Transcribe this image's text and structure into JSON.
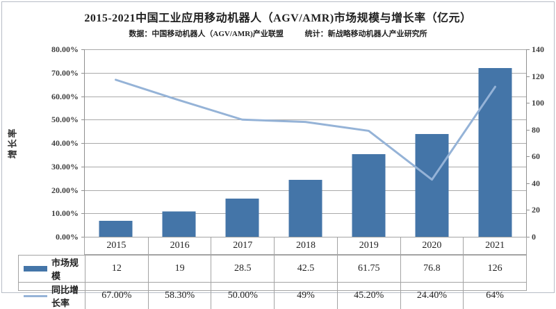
{
  "header": {
    "title": "2015-2021中国工业应用移动机器人（AGV/AMR)市场规模与增长率（亿元）",
    "source_note": "数据：中国移动机器人（AGV/AMR)产业联盟",
    "stat_note": "统计：新战略移动机器人产业研究所"
  },
  "chart_data": {
    "type": "combo-bar-line",
    "title": "2015-2021中国工业应用移动机器人（AGV/AMR)市场规模与增长率（亿元）",
    "categories": [
      "2015",
      "2016",
      "2017",
      "2018",
      "2019",
      "2020",
      "2021"
    ],
    "series": [
      {
        "name": "市场规模",
        "type": "bar",
        "axis": "right",
        "values": [
          12,
          19,
          28.5,
          42.5,
          61.75,
          76.8,
          126
        ],
        "display": [
          "12",
          "19",
          "28.5",
          "42.5",
          "61.75",
          "76.8",
          "126"
        ],
        "color": "#4475a8"
      },
      {
        "name": "同比增长率",
        "type": "line",
        "axis": "left",
        "values": [
          67,
          58.3,
          50,
          49,
          45.2,
          24.4,
          64
        ],
        "display": [
          "67.00%",
          "58.30%",
          "50.00%",
          "49%",
          "45.20%",
          "24.40%",
          "64%"
        ],
        "color": "#95b3d7"
      }
    ],
    "left_axis": {
      "title": "增长率",
      "min": 0,
      "max": 80,
      "step": 10,
      "tick_labels": [
        "0.00%",
        "10.00%",
        "20.00%",
        "30.00%",
        "40.00%",
        "50.00%",
        "60.00%",
        "70.00%",
        "80.00%"
      ]
    },
    "right_axis": {
      "min": 0,
      "max": 140,
      "step": 20,
      "tick_labels": [
        "0",
        "20",
        "40",
        "60",
        "80",
        "100",
        "120",
        "140"
      ]
    },
    "grid": "horizontal",
    "legend_position": "table-left-column",
    "colors": {
      "grid": "#a9a9a9",
      "axis": "#8f8f8f",
      "table_border": "#a3a3a3",
      "tick_text": "#3f3f3f"
    }
  }
}
